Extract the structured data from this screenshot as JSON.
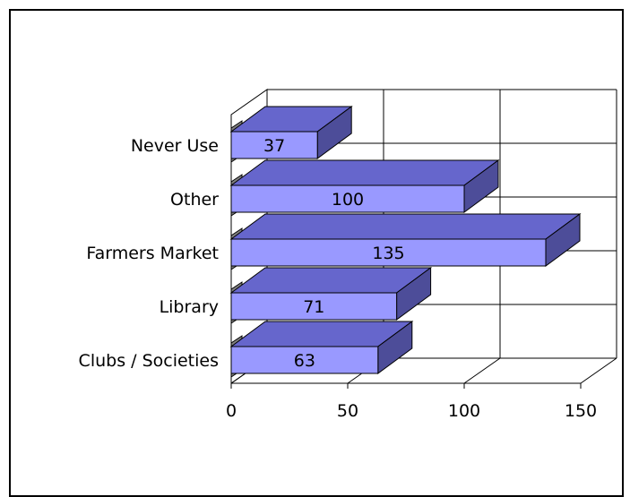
{
  "chart_data": {
    "type": "bar",
    "orientation": "horizontal",
    "style": "3d",
    "categories": [
      "Never Use",
      "Other",
      "Farmers Market",
      "Library",
      "Clubs / Societies"
    ],
    "values": [
      37,
      100,
      135,
      71,
      63
    ],
    "xlim": [
      0,
      150
    ],
    "x_ticks": [
      "0",
      "50",
      "100",
      "150"
    ],
    "grid": true,
    "title": "",
    "xlabel": "",
    "ylabel": "",
    "colors": {
      "bar_front": "#9999ff",
      "bar_top": "#6666cc",
      "bar_side": "#4d4d99",
      "floor": "#808080",
      "grid": "#000000"
    }
  }
}
